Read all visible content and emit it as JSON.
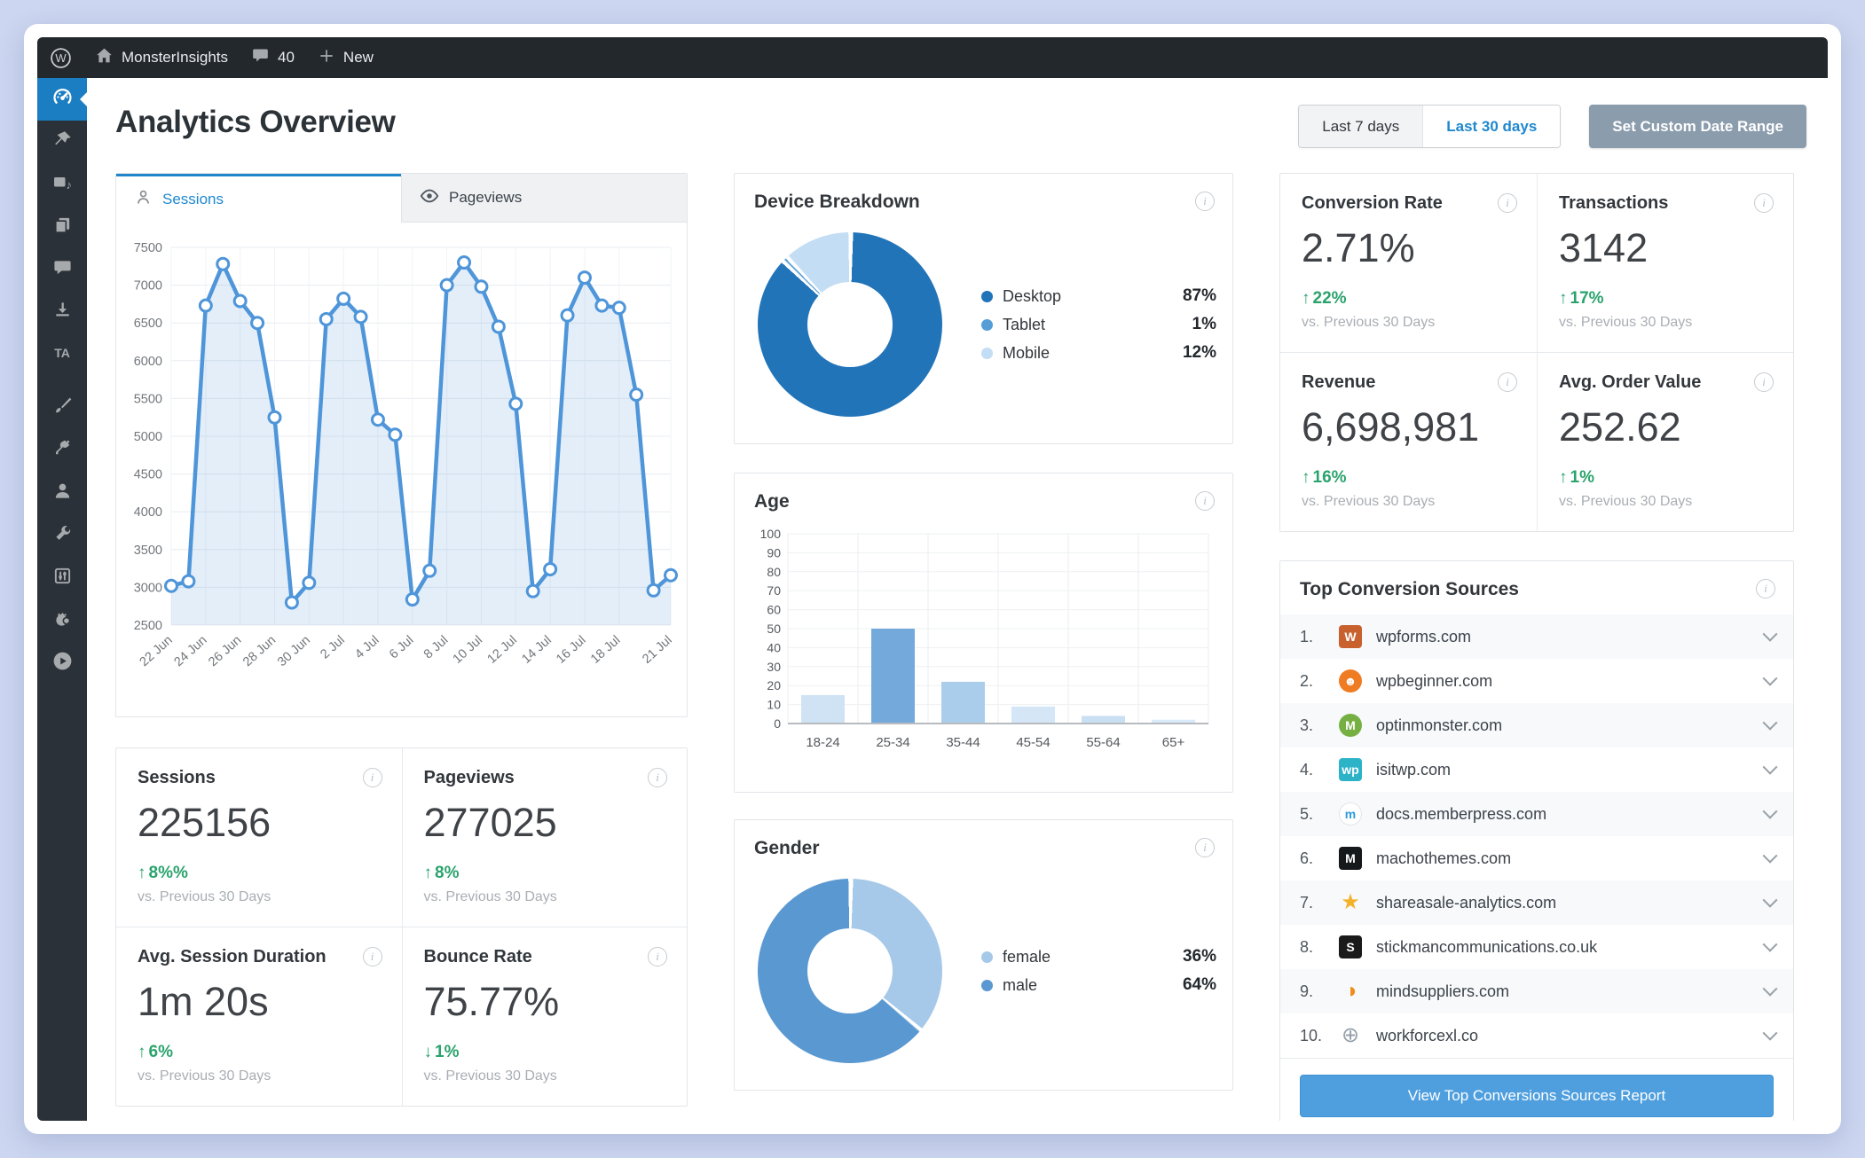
{
  "admin_bar": {
    "site": "MonsterInsights",
    "comments": "40",
    "new_label": "New"
  },
  "page": {
    "title": "Analytics Overview"
  },
  "date_range": {
    "last7": "Last 7 days",
    "last30": "Last 30 days",
    "custom": "Set Custom Date Range"
  },
  "chart_tabs": {
    "sessions": "Sessions",
    "pageviews": "Pageviews"
  },
  "colors": {
    "accent_blue": "#1f86c9",
    "button_blue": "#4f9fdf",
    "positive_green": "#2aa36c",
    "sidebar_active_blue": "#1b7ec2",
    "custom_range_gray": "#8b9cad"
  },
  "sidebar": {
    "items": [
      {
        "name": "dashboard-icon",
        "active": true
      },
      {
        "name": "pin-icon"
      },
      {
        "name": "media-icon"
      },
      {
        "name": "pages-icon"
      },
      {
        "name": "comments-icon"
      },
      {
        "name": "download-icon"
      },
      {
        "name": "ta-text-icon"
      },
      {
        "name": "brush-icon",
        "gap": true
      },
      {
        "name": "plugin-icon"
      },
      {
        "name": "users-icon"
      },
      {
        "name": "tools-icon"
      },
      {
        "name": "settings-icon"
      },
      {
        "name": "mascot-icon"
      },
      {
        "name": "play-icon"
      }
    ]
  },
  "chart_data": [
    {
      "id": "sessions_over_time",
      "type": "area",
      "title": "Sessions",
      "ylim": [
        2500,
        7500
      ],
      "y_step": 500,
      "grid": true,
      "line_color": "#4e95d9",
      "fill_color": "rgba(78,149,217,0.16)",
      "x_tick_labels": [
        "22 Jun",
        "24 Jun",
        "26 Jun",
        "28 Jun",
        "30 Jun",
        "2 Jul",
        "4 Jul",
        "6 Jul",
        "8 Jul",
        "10 Jul",
        "12 Jul",
        "14 Jul",
        "16 Jul",
        "18 Jul",
        "21 Jul"
      ],
      "x_tick_indices": [
        0,
        2,
        4,
        6,
        8,
        10,
        12,
        14,
        16,
        18,
        20,
        22,
        24,
        26,
        29
      ],
      "values": [
        3020,
        3080,
        6730,
        7280,
        6790,
        6500,
        5250,
        2800,
        3060,
        6550,
        6820,
        6580,
        5220,
        5020,
        2840,
        3220,
        7000,
        7300,
        6980,
        6450,
        5430,
        2950,
        3240,
        6600,
        7100,
        6730,
        6700,
        5550,
        2960,
        3160
      ]
    },
    {
      "id": "device_breakdown",
      "type": "pie",
      "title": "Device Breakdown",
      "legend_position": "right",
      "slices": [
        {
          "label": "Desktop",
          "value": 87,
          "color": "#2274b9"
        },
        {
          "label": "Tablet",
          "value": 1,
          "color": "#569dd6"
        },
        {
          "label": "Mobile",
          "value": 12,
          "color": "#c3def4"
        }
      ]
    },
    {
      "id": "age",
      "type": "bar",
      "title": "Age",
      "categories": [
        "18-24",
        "25-34",
        "35-44",
        "45-54",
        "55-64",
        "65+"
      ],
      "values": [
        15,
        50,
        22,
        9,
        4,
        2
      ],
      "colors": [
        "#cfe3f5",
        "#74aadb",
        "#abcdec",
        "#d5e7f7",
        "#c9dff2",
        "#d9eaf8"
      ],
      "ylim": [
        0,
        100
      ],
      "y_step": 10,
      "grid": true
    },
    {
      "id": "gender",
      "type": "pie",
      "title": "Gender",
      "legend_position": "right",
      "slices": [
        {
          "label": "female",
          "value": 36,
          "color": "#a6c9e9"
        },
        {
          "label": "male",
          "value": 64,
          "color": "#5a98d1"
        }
      ]
    }
  ],
  "kpis_traffic": [
    {
      "label": "Sessions",
      "value": "225156",
      "dir": "up",
      "delta": "8%%",
      "note": "vs. Previous 30 Days"
    },
    {
      "label": "Pageviews",
      "value": "277025",
      "dir": "up",
      "delta": "8%",
      "note": "vs. Previous 30 Days"
    },
    {
      "label": "Avg. Session Duration",
      "value": "1m 20s",
      "dir": "up",
      "delta": "6%",
      "note": "vs. Previous 30 Days"
    },
    {
      "label": "Bounce Rate",
      "value": "75.77%",
      "dir": "down",
      "delta": "1%",
      "note": "vs. Previous 30 Days"
    }
  ],
  "kpis_ecommerce": [
    {
      "label": "Conversion Rate",
      "value": "2.71%",
      "dir": "up",
      "delta": "22%",
      "note": "vs. Previous 30 Days"
    },
    {
      "label": "Transactions",
      "value": "3142",
      "dir": "up",
      "delta": "17%",
      "note": "vs. Previous 30 Days"
    },
    {
      "label": "Revenue",
      "value": "6,698,981",
      "dir": "up",
      "delta": "16%",
      "note": "vs. Previous 30 Days"
    },
    {
      "label": "Avg. Order Value",
      "value": "252.62",
      "dir": "up",
      "delta": "1%",
      "note": "vs. Previous 30 Days"
    }
  ],
  "sources": {
    "title": "Top Conversion Sources",
    "button": "View Top Conversions Sources Report",
    "items": [
      {
        "rank": "1.",
        "domain": "wpforms.com",
        "favicon": {
          "shape": "square",
          "bg": "#c9612f",
          "fg": "#ffffff",
          "glyph": "W"
        }
      },
      {
        "rank": "2.",
        "domain": "wpbeginner.com",
        "favicon": {
          "shape": "circle",
          "bg": "#ef7c23",
          "fg": "#ffffff",
          "glyph": "☻"
        }
      },
      {
        "rank": "3.",
        "domain": "optinmonster.com",
        "favicon": {
          "shape": "circle",
          "bg": "#76b043",
          "fg": "#ffffff",
          "glyph": "M"
        }
      },
      {
        "rank": "4.",
        "domain": "isitwp.com",
        "favicon": {
          "shape": "square",
          "bg": "#2cb3c7",
          "fg": "#ffffff",
          "glyph": "wp"
        }
      },
      {
        "rank": "5.",
        "domain": "docs.memberpress.com",
        "favicon": {
          "shape": "circle",
          "bg": "#ffffff",
          "fg": "#2d9cdb",
          "glyph": "m"
        }
      },
      {
        "rank": "6.",
        "domain": "machothemes.com",
        "favicon": {
          "shape": "square",
          "bg": "#16191c",
          "fg": "#ffffff",
          "glyph": "M"
        }
      },
      {
        "rank": "7.",
        "domain": "shareasale-analytics.com",
        "favicon": {
          "shape": "glyph",
          "bg": "",
          "fg": "#f3b229",
          "glyph": "★"
        }
      },
      {
        "rank": "8.",
        "domain": "stickmancommunications.co.uk",
        "favicon": {
          "shape": "square",
          "bg": "#1a1a1a",
          "fg": "#ffffff",
          "glyph": "S"
        }
      },
      {
        "rank": "9.",
        "domain": "mindsuppliers.com",
        "favicon": {
          "shape": "glyph",
          "bg": "",
          "fg": "#ee8d1d",
          "glyph": "◑"
        }
      },
      {
        "rank": "10.",
        "domain": "workforcexl.co",
        "favicon": {
          "shape": "glyph",
          "bg": "",
          "fg": "#97a1ab",
          "glyph": "⊕"
        }
      }
    ]
  }
}
